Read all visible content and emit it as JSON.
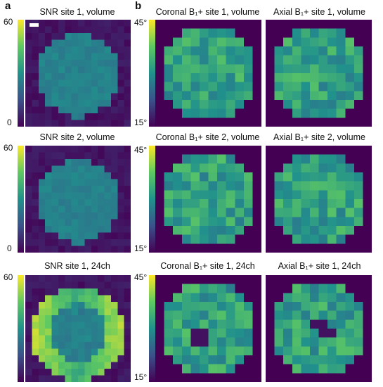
{
  "panel_labels": {
    "a": "a",
    "b": "b"
  },
  "colormap": [
    "#440154",
    "#3b528b",
    "#21918c",
    "#5ec962",
    "#fde725"
  ],
  "snr_colorbar": {
    "max_label": "60",
    "min_label": "0"
  },
  "flip_colorbar": {
    "max_label": "45°",
    "min_label": "15°"
  },
  "rows": [
    {
      "snr_title": "SNR site 1, volume",
      "coronal_title": "Coronal B₁+ site 1, volume",
      "axial_title": "Axial B₁+ site 1, volume"
    },
    {
      "snr_title": "SNR site 2, volume",
      "coronal_title": "Coronal B₁+ site 2, volume",
      "axial_title": "Axial B₁+ site 2, volume"
    },
    {
      "snr_title": "SNR site 1, 24ch",
      "coronal_title": "Coronal B₁+ site 1, 24ch",
      "axial_title": "Axial B₁+ site 1, 24ch"
    }
  ]
}
